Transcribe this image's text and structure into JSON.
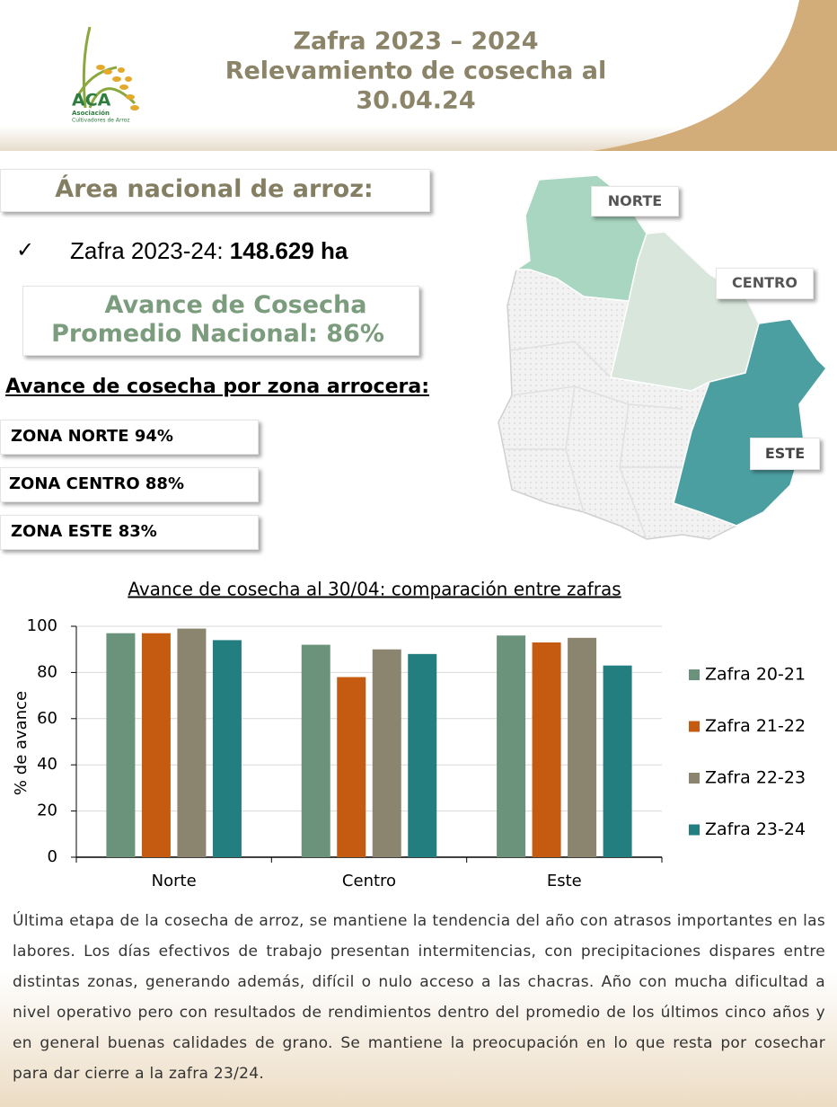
{
  "header": {
    "title": [
      "Zafra 2023 – 2024",
      "Relevamiento de cosecha al",
      "30.04.24"
    ]
  },
  "logo": {
    "name": "ACA",
    "subtitle": [
      "Asociación",
      "Cultivadores de Arroz"
    ]
  },
  "area": {
    "heading": "Área nacional de arroz:",
    "bullet": "✓",
    "label": "Zafra 2023-24:",
    "value": "148.629 ha"
  },
  "average": {
    "lines": [
      "Avance de Cosecha",
      "Promedio Nacional: 86%"
    ]
  },
  "zones": {
    "heading": "Avance de cosecha por zona arrocera:",
    "items": [
      "ZONA NORTE 94%",
      "ZONA CENTRO 88%",
      "ZONA ESTE 83%"
    ]
  },
  "map": {
    "labels": [
      "NORTE",
      "CENTRO",
      "ESTE"
    ]
  },
  "chart_data": {
    "type": "bar",
    "title": "Avance de cosecha al 30/04: comparación entre zafras",
    "y_label": "% de avance",
    "categories": [
      "Norte",
      "Centro",
      "Este"
    ],
    "series": [
      {
        "name": "Zafra 20-21",
        "color": "#6b937c",
        "values": [
          97,
          92,
          96
        ]
      },
      {
        "name": "Zafra 21-22",
        "color": "#c55a11",
        "values": [
          97,
          78,
          93
        ]
      },
      {
        "name": "Zafra 22-23",
        "color": "#8b8570",
        "values": [
          99,
          90,
          95
        ]
      },
      {
        "name": "Zafra 23-24",
        "color": "#237e80",
        "values": [
          94,
          88,
          83
        ]
      }
    ],
    "ylim": [
      0,
      100
    ],
    "yticks": [
      0,
      20,
      40,
      60,
      80,
      100
    ],
    "grid": true,
    "legend": "right"
  },
  "note": "Última etapa de la cosecha de arroz, se mantiene la tendencia del año con atrasos importantes en las labores. Los días efectivos de trabajo presentan intermitencias, con precipitaciones dispares entre distintas zonas, generando además, difícil o nulo acceso a las chacras. Año con mucha dificultad a nivel operativo pero con resultados de rendimientos dentro del promedio de los últimos cinco años y en general buenas calidades de grano.  Se mantiene la preocupación en lo que resta por cosechar para dar cierre a la zafra 23/24."
}
